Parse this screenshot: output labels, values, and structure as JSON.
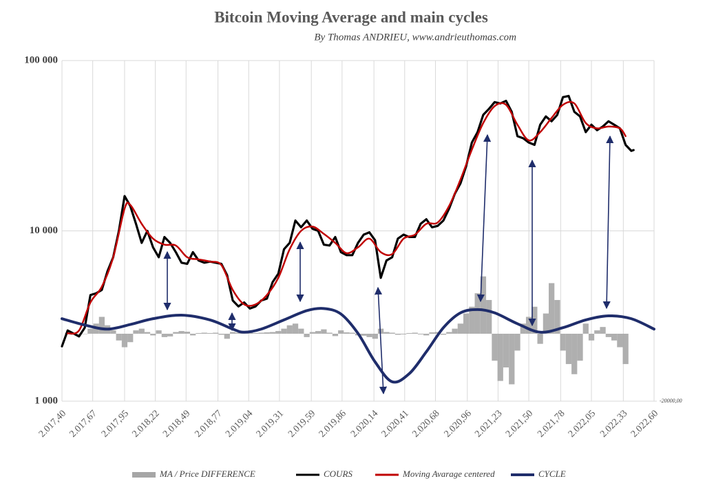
{
  "chart_data": {
    "type": "line",
    "title": "Bitcoin Moving Average and main cycles",
    "subtitle": "By Thomas ANDRIEU, www.andrieuthomas.com",
    "yscale": "log",
    "xlim": [
      2017.4,
      2022.6
    ],
    "ylim": [
      1000,
      100000
    ],
    "y2lim": [
      -20000,
      81000
    ],
    "xticks": [
      {
        "value": 2017.4,
        "label": "2.017,40"
      },
      {
        "value": 2017.67,
        "label": "2.017,67"
      },
      {
        "value": 2017.95,
        "label": "2.017,95"
      },
      {
        "value": 2018.22,
        "label": "2.018,22"
      },
      {
        "value": 2018.49,
        "label": "2.018,49"
      },
      {
        "value": 2018.77,
        "label": "2.018,77"
      },
      {
        "value": 2019.04,
        "label": "2.019,04"
      },
      {
        "value": 2019.31,
        "label": "2.019,31"
      },
      {
        "value": 2019.59,
        "label": "2.019,59"
      },
      {
        "value": 2019.86,
        "label": "2.019,86"
      },
      {
        "value": 2020.14,
        "label": "2.020,14"
      },
      {
        "value": 2020.41,
        "label": "2.020,41"
      },
      {
        "value": 2020.68,
        "label": "2.020,68"
      },
      {
        "value": 2020.96,
        "label": "2.020,96"
      },
      {
        "value": 2021.23,
        "label": "2.021,23"
      },
      {
        "value": 2021.5,
        "label": "2.021,50"
      },
      {
        "value": 2021.78,
        "label": "2.021,78"
      },
      {
        "value": 2022.05,
        "label": "2.022,05"
      },
      {
        "value": 2022.33,
        "label": "2.022,33"
      },
      {
        "value": 2022.6,
        "label": "2.022,60"
      }
    ],
    "yticks": [
      {
        "value": 1000,
        "label": "1 000"
      },
      {
        "value": 10000,
        "label": "10 000"
      },
      {
        "value": 100000,
        "label": "100 000"
      }
    ],
    "y2ticks": [
      {
        "value": -20000,
        "label": "-20000,00"
      }
    ],
    "grid": true,
    "legend": "bottom",
    "series": [
      {
        "name": "MA / Price DIFFERENCE",
        "color": "#a6a6a6",
        "type": "bar",
        "axis": "y2",
        "x": [
          2017.45,
          2017.5,
          2017.55,
          2017.6,
          2017.65,
          2017.7,
          2017.75,
          2017.8,
          2017.85,
          2017.9,
          2017.95,
          2018.0,
          2018.05,
          2018.1,
          2018.15,
          2018.2,
          2018.25,
          2018.3,
          2018.35,
          2018.4,
          2018.45,
          2018.5,
          2018.55,
          2018.6,
          2018.65,
          2018.7,
          2018.75,
          2018.8,
          2018.85,
          2018.9,
          2018.95,
          2019.0,
          2019.05,
          2019.1,
          2019.15,
          2019.2,
          2019.25,
          2019.3,
          2019.35,
          2019.4,
          2019.45,
          2019.5,
          2019.55,
          2019.6,
          2019.65,
          2019.7,
          2019.75,
          2019.8,
          2019.85,
          2019.9,
          2019.95,
          2020.0,
          2020.05,
          2020.1,
          2020.15,
          2020.2,
          2020.25,
          2020.3,
          2020.35,
          2020.4,
          2020.45,
          2020.5,
          2020.55,
          2020.6,
          2020.65,
          2020.7,
          2020.75,
          2020.8,
          2020.85,
          2020.9,
          2020.95,
          2021.0,
          2021.05,
          2021.1,
          2021.15,
          2021.2,
          2021.25,
          2021.3,
          2021.35,
          2021.4,
          2021.45,
          2021.5,
          2021.55,
          2021.6,
          2021.65,
          2021.7,
          2021.75,
          2021.8,
          2021.85,
          2021.9,
          2021.95,
          2022.0,
          2022.05,
          2022.1,
          2022.15,
          2022.2,
          2022.25,
          2022.3,
          2022.35
        ],
        "values": [
          200,
          -300,
          -200,
          -100,
          1500,
          3000,
          5000,
          2500,
          1000,
          -2000,
          -4000,
          -2500,
          1000,
          1500,
          500,
          -500,
          1000,
          -1000,
          -800,
          500,
          800,
          600,
          -500,
          200,
          300,
          200,
          300,
          -300,
          -1500,
          500,
          300,
          200,
          300,
          200,
          300,
          400,
          500,
          800,
          1500,
          2500,
          3000,
          1500,
          -1000,
          500,
          800,
          1300,
          300,
          -700,
          1000,
          400,
          300,
          -500,
          -600,
          -1000,
          -1500,
          1500,
          500,
          300,
          -300,
          -200,
          200,
          300,
          -200,
          -500,
          400,
          500,
          -300,
          500,
          1500,
          3000,
          6000,
          8000,
          12000,
          17000,
          10000,
          -8000,
          -14000,
          -10000,
          -15000,
          -5000,
          3000,
          5000,
          8000,
          -3000,
          6000,
          15000,
          10000,
          -5000,
          -9000,
          -12000,
          -8000,
          3000,
          -2000,
          1000,
          2000,
          -1000,
          -2000,
          -4000,
          -9000
        ]
      },
      {
        "name": "COURS",
        "color": "#000000",
        "x": [
          2017.4,
          2017.45,
          2017.5,
          2017.55,
          2017.6,
          2017.65,
          2017.7,
          2017.75,
          2017.8,
          2017.85,
          2017.9,
          2017.95,
          2018.0,
          2018.05,
          2018.1,
          2018.15,
          2018.2,
          2018.25,
          2018.3,
          2018.35,
          2018.4,
          2018.45,
          2018.5,
          2018.55,
          2018.6,
          2018.65,
          2018.7,
          2018.75,
          2018.8,
          2018.85,
          2018.9,
          2018.95,
          2019.0,
          2019.05,
          2019.1,
          2019.15,
          2019.2,
          2019.25,
          2019.3,
          2019.35,
          2019.4,
          2019.45,
          2019.5,
          2019.55,
          2019.6,
          2019.65,
          2019.7,
          2019.75,
          2019.8,
          2019.85,
          2019.9,
          2019.95,
          2020.0,
          2020.05,
          2020.1,
          2020.15,
          2020.2,
          2020.25,
          2020.3,
          2020.35,
          2020.4,
          2020.45,
          2020.5,
          2020.55,
          2020.6,
          2020.65,
          2020.7,
          2020.75,
          2020.8,
          2020.85,
          2020.9,
          2020.95,
          2021.0,
          2021.05,
          2021.1,
          2021.15,
          2021.2,
          2021.25,
          2021.3,
          2021.35,
          2021.4,
          2021.45,
          2021.5,
          2021.55,
          2021.6,
          2021.65,
          2021.7,
          2021.75,
          2021.8,
          2021.85,
          2021.9,
          2021.95,
          2022.0,
          2022.05,
          2022.1,
          2022.15,
          2022.2,
          2022.25,
          2022.3,
          2022.35,
          2022.4,
          2022.42
        ],
        "values": [
          2100,
          2600,
          2500,
          2400,
          2700,
          4200,
          4300,
          4500,
          5800,
          7000,
          10000,
          16000,
          14000,
          11000,
          8500,
          10000,
          8000,
          7000,
          9200,
          8500,
          7500,
          6500,
          6400,
          7500,
          6700,
          6500,
          6600,
          6500,
          6400,
          5500,
          3900,
          3600,
          3800,
          3500,
          3600,
          3900,
          4000,
          5000,
          5600,
          7800,
          8500,
          11500,
          10500,
          11500,
          10300,
          10000,
          8300,
          8200,
          9200,
          7500,
          7200,
          7200,
          8500,
          9500,
          9800,
          8800,
          5300,
          6700,
          7000,
          9000,
          9500,
          9200,
          9200,
          11000,
          11700,
          10500,
          10700,
          11500,
          13500,
          16500,
          19000,
          24000,
          33000,
          38000,
          48000,
          52000,
          57000,
          56000,
          58000,
          50000,
          36000,
          35000,
          33000,
          32000,
          42000,
          47000,
          44000,
          48000,
          61000,
          62000,
          50000,
          47000,
          38000,
          42000,
          39000,
          41000,
          44000,
          42000,
          40000,
          32000,
          29500,
          29800
        ]
      },
      {
        "name": "Moving Avarage centered",
        "color": "#c00000",
        "smooth": true,
        "x": [
          2017.45,
          2017.55,
          2017.65,
          2017.75,
          2017.85,
          2017.95,
          2018.0,
          2018.1,
          2018.2,
          2018.3,
          2018.4,
          2018.5,
          2018.6,
          2018.7,
          2018.8,
          2018.9,
          2019.0,
          2019.1,
          2019.2,
          2019.3,
          2019.4,
          2019.5,
          2019.6,
          2019.7,
          2019.8,
          2019.9,
          2020.0,
          2020.1,
          2020.2,
          2020.3,
          2020.4,
          2020.5,
          2020.6,
          2020.7,
          2020.8,
          2020.9,
          2021.0,
          2021.1,
          2021.2,
          2021.3,
          2021.4,
          2021.5,
          2021.6,
          2021.7,
          2021.8,
          2021.9,
          2022.0,
          2022.1,
          2022.2,
          2022.3,
          2022.35
        ],
        "values": [
          2500,
          2600,
          3800,
          4700,
          7000,
          13500,
          14200,
          11000,
          9000,
          8300,
          8200,
          7000,
          6800,
          6600,
          6300,
          4500,
          3700,
          3700,
          4200,
          5300,
          7800,
          10000,
          10600,
          9600,
          8500,
          7400,
          8000,
          9000,
          7500,
          7300,
          9000,
          9500,
          11000,
          11200,
          14000,
          20000,
          30000,
          43000,
          54000,
          55000,
          42000,
          34000,
          38000,
          46000,
          55000,
          56000,
          43000,
          40000,
          41000,
          40000,
          36000
        ]
      },
      {
        "name": "CYCLE",
        "color": "#1f2d6b",
        "smooth": true,
        "x": [
          2017.4,
          2017.6,
          2017.8,
          2018.0,
          2018.2,
          2018.45,
          2018.7,
          2018.9,
          2019.0,
          2019.15,
          2019.35,
          2019.55,
          2019.7,
          2019.85,
          2020.0,
          2020.15,
          2020.3,
          2020.45,
          2020.6,
          2020.75,
          2020.9,
          2021.05,
          2021.2,
          2021.4,
          2021.6,
          2021.8,
          2022.0,
          2022.2,
          2022.4,
          2022.6
        ],
        "values": [
          3050,
          2800,
          2650,
          2820,
          3050,
          3200,
          3000,
          2650,
          2540,
          2650,
          3000,
          3400,
          3500,
          3250,
          2500,
          1700,
          1300,
          1450,
          1950,
          2700,
          3300,
          3450,
          3300,
          2850,
          2540,
          2700,
          3000,
          3170,
          3050,
          2650
        ]
      }
    ]
  }
}
